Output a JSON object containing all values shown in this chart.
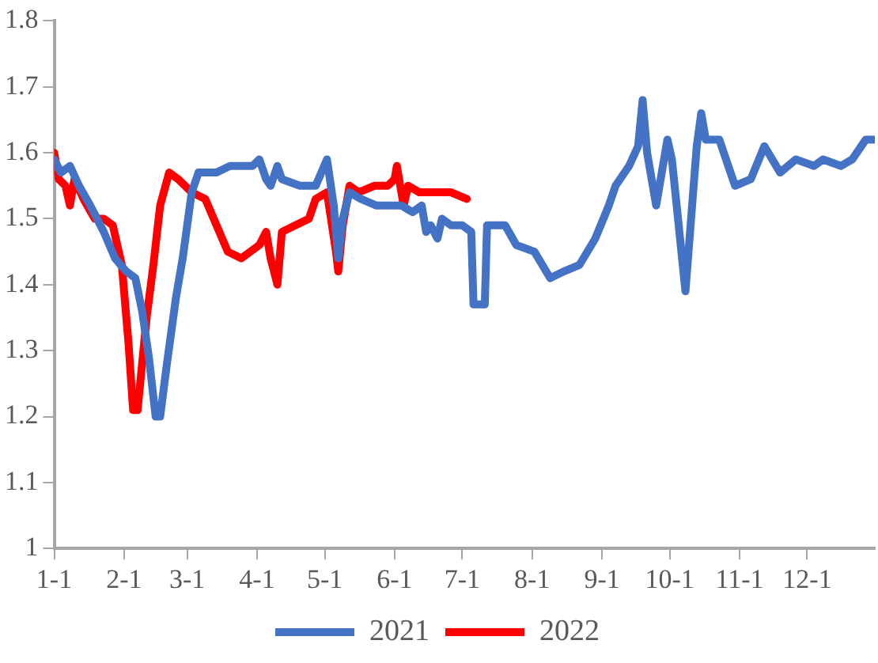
{
  "chart_data": {
    "type": "line",
    "xlim": [
      "--01-01",
      "--12-31"
    ],
    "ylim": [
      1,
      1.8
    ],
    "xticks": [
      {
        "value": "--01-01",
        "label": "1-1"
      },
      {
        "value": "--02-01",
        "label": "2-1"
      },
      {
        "value": "--03-01",
        "label": "3-1"
      },
      {
        "value": "--04-01",
        "label": "4-1"
      },
      {
        "value": "--05-01",
        "label": "5-1"
      },
      {
        "value": "--06-01",
        "label": "6-1"
      },
      {
        "value": "--07-01",
        "label": "7-1"
      },
      {
        "value": "--08-01",
        "label": "8-1"
      },
      {
        "value": "--09-01",
        "label": "9-1"
      },
      {
        "value": "--10-01",
        "label": "10-1"
      },
      {
        "value": "--11-01",
        "label": "11-1"
      },
      {
        "value": "--12-01",
        "label": "12-1"
      }
    ],
    "yticks": [
      1,
      1.1,
      1.2,
      1.3,
      1.4,
      1.5,
      1.6,
      1.7,
      1.8
    ],
    "grid": false,
    "legend": "bottom",
    "marker": "none",
    "line_style": "solid",
    "series": [
      {
        "name": "2021",
        "color": "#4472c4",
        "x": [
          "--01-01",
          "--01-04",
          "--01-08",
          "--01-12",
          "--01-17",
          "--01-23",
          "--01-28",
          "--02-02",
          "--02-06",
          "--02-09",
          "--02-12",
          "--02-15",
          "--02-17",
          "--02-20",
          "--02-24",
          "--02-27",
          "--03-03",
          "--03-06",
          "--03-10",
          "--03-14",
          "--03-20",
          "--03-25",
          "--03-30",
          "--04-02",
          "--04-05",
          "--04-07",
          "--04-10",
          "--04-12",
          "--04-20",
          "--04-27",
          "--05-02",
          "--05-05",
          "--05-07",
          "--05-09",
          "--05-12",
          "--05-17",
          "--05-24",
          "--05-29",
          "--06-04",
          "--06-09",
          "--06-13",
          "--06-15",
          "--06-17",
          "--06-20",
          "--06-22",
          "--06-26",
          "--07-01",
          "--07-05",
          "--07-06",
          "--07-11",
          "--07-12",
          "--07-20",
          "--07-25",
          "--08-02",
          "--08-09",
          "--08-15",
          "--08-22",
          "--08-29",
          "--09-04",
          "--09-07",
          "--09-13",
          "--09-17",
          "--09-19",
          "--09-21",
          "--09-25",
          "--09-30",
          "--10-02",
          "--10-08",
          "--10-13",
          "--10-15",
          "--10-17",
          "--10-23",
          "--10-30",
          "--11-06",
          "--11-12",
          "--11-19",
          "--11-26",
          "--12-04",
          "--12-08",
          "--12-16",
          "--12-21",
          "--12-27",
          "--12-31"
        ],
        "values": [
          1.59,
          1.57,
          1.58,
          1.55,
          1.52,
          1.48,
          1.44,
          1.42,
          1.41,
          1.36,
          1.29,
          1.2,
          1.2,
          1.28,
          1.38,
          1.44,
          1.54,
          1.57,
          1.57,
          1.57,
          1.58,
          1.58,
          1.58,
          1.59,
          1.56,
          1.55,
          1.58,
          1.56,
          1.55,
          1.55,
          1.59,
          1.52,
          1.44,
          1.5,
          1.54,
          1.53,
          1.52,
          1.52,
          1.52,
          1.51,
          1.52,
          1.48,
          1.49,
          1.47,
          1.5,
          1.49,
          1.49,
          1.48,
          1.37,
          1.37,
          1.49,
          1.49,
          1.46,
          1.45,
          1.41,
          1.42,
          1.43,
          1.47,
          1.52,
          1.55,
          1.58,
          1.61,
          1.68,
          1.6,
          1.52,
          1.62,
          1.59,
          1.39,
          1.61,
          1.66,
          1.62,
          1.62,
          1.55,
          1.56,
          1.61,
          1.57,
          1.59,
          1.58,
          1.59,
          1.58,
          1.59,
          1.62,
          1.62
        ]
      },
      {
        "name": "2022",
        "color": "#ff0000",
        "x": [
          "--01-01",
          "--01-03",
          "--01-06",
          "--01-08",
          "--01-10",
          "--01-14",
          "--01-19",
          "--01-23",
          "--01-27",
          "--01-31",
          "--02-03",
          "--02-05",
          "--02-07",
          "--02-11",
          "--02-14",
          "--02-17",
          "--02-21",
          "--02-25",
          "--03-03",
          "--03-09",
          "--03-14",
          "--03-19",
          "--03-25",
          "--04-02",
          "--04-05",
          "--04-07",
          "--04-10",
          "--04-12",
          "--04-18",
          "--04-24",
          "--04-27",
          "--05-02",
          "--05-06",
          "--05-07",
          "--05-09",
          "--05-12",
          "--05-16",
          "--05-23",
          "--05-29",
          "--06-01",
          "--06-02",
          "--06-05",
          "--06-07",
          "--06-12",
          "--06-18",
          "--06-26",
          "--07-03"
        ],
        "values": [
          1.6,
          1.56,
          1.55,
          1.52,
          1.56,
          1.53,
          1.5,
          1.5,
          1.49,
          1.43,
          1.31,
          1.21,
          1.21,
          1.35,
          1.43,
          1.52,
          1.57,
          1.56,
          1.54,
          1.53,
          1.49,
          1.45,
          1.44,
          1.46,
          1.48,
          1.44,
          1.4,
          1.48,
          1.49,
          1.5,
          1.53,
          1.54,
          1.45,
          1.42,
          1.49,
          1.55,
          1.54,
          1.55,
          1.55,
          1.56,
          1.58,
          1.52,
          1.55,
          1.54,
          1.54,
          1.54,
          1.53
        ]
      }
    ]
  }
}
